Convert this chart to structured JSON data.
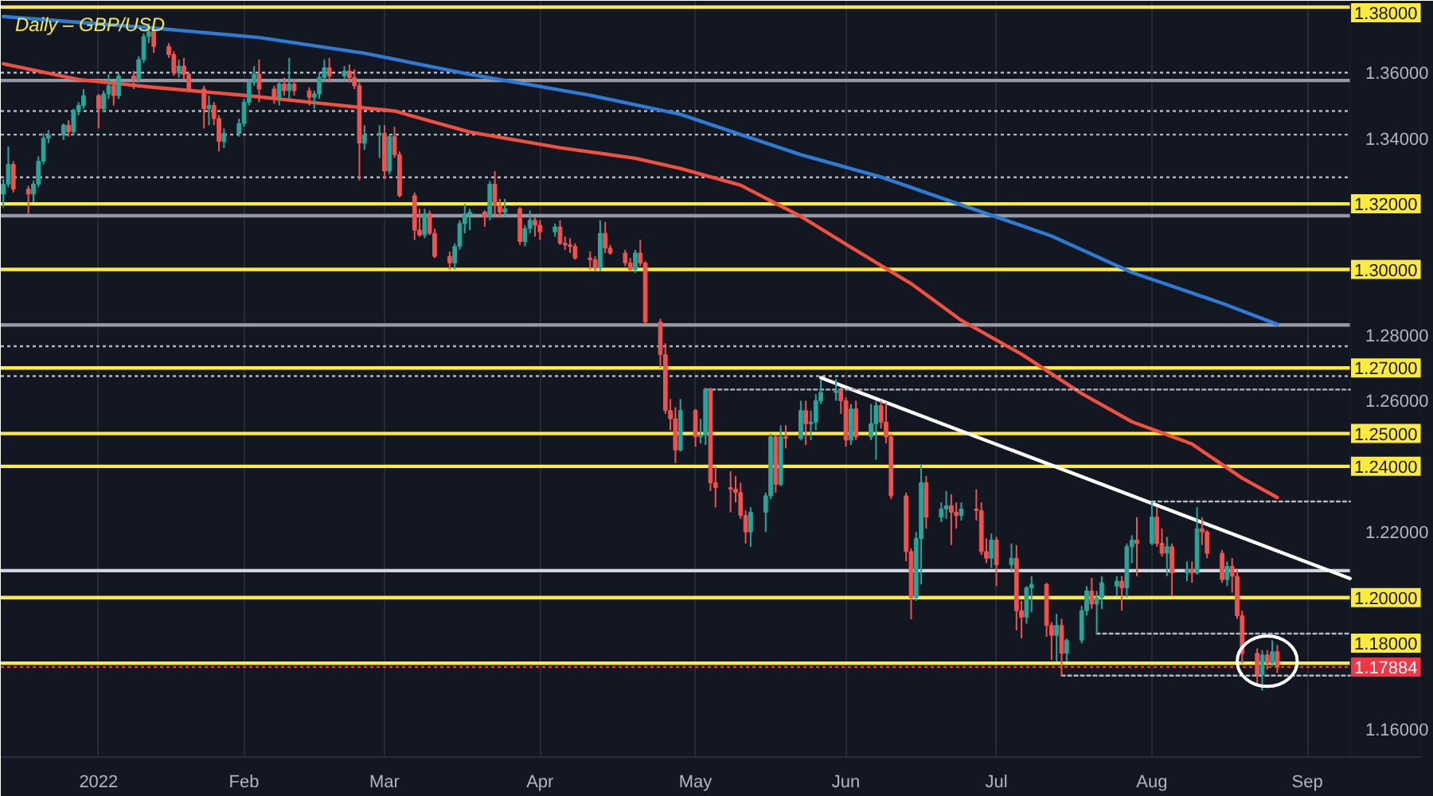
{
  "chart_data": {
    "type": "candlestick",
    "title": "Daily – GBP/USD",
    "xlim": [
      "2021-12-14T12:00",
      "2022-09-23T16:00"
    ],
    "ylim": [
      1.1514,
      1.3819
    ],
    "xticks": [
      {
        "value": "2022-01-03",
        "label": "2022"
      },
      {
        "value": "2022-02-01",
        "label": "Feb"
      },
      {
        "value": "2022-03-01",
        "label": "Mar"
      },
      {
        "value": "2022-04-01",
        "label": "Apr"
      },
      {
        "value": "2022-05-02",
        "label": "May"
      },
      {
        "value": "2022-06-01",
        "label": "Jun"
      },
      {
        "value": "2022-07-01",
        "label": "Jul"
      },
      {
        "value": "2022-08-01",
        "label": "Aug"
      },
      {
        "value": "2022-09-01",
        "label": "Sep"
      }
    ],
    "yticks": [
      {
        "value": 1.36,
        "label": "1.36000"
      },
      {
        "value": 1.34,
        "label": "1.34000"
      },
      {
        "value": 1.28,
        "label": "1.28000"
      },
      {
        "value": 1.26,
        "label": "1.26000"
      },
      {
        "value": 1.22,
        "label": "1.22000"
      },
      {
        "value": 1.16,
        "label": "1.16000"
      }
    ],
    "grid": "x",
    "x": [
      "2021-12-15",
      "2021-12-16",
      "2021-12-17",
      "2021-12-20",
      "2021-12-21",
      "2021-12-22",
      "2021-12-23",
      "2021-12-24",
      "2021-12-27",
      "2021-12-28",
      "2021-12-29",
      "2021-12-30",
      "2021-12-31",
      "2022-01-03",
      "2022-01-04",
      "2022-01-05",
      "2022-01-06",
      "2022-01-07",
      "2022-01-10",
      "2022-01-11",
      "2022-01-12",
      "2022-01-13",
      "2022-01-14",
      "2022-01-17",
      "2022-01-18",
      "2022-01-19",
      "2022-01-20",
      "2022-01-21",
      "2022-01-24",
      "2022-01-25",
      "2022-01-26",
      "2022-01-27",
      "2022-01-28",
      "2022-01-31",
      "2022-02-01",
      "2022-02-02",
      "2022-02-03",
      "2022-02-04",
      "2022-02-07",
      "2022-02-08",
      "2022-02-09",
      "2022-02-10",
      "2022-02-11",
      "2022-02-14",
      "2022-02-15",
      "2022-02-16",
      "2022-02-17",
      "2022-02-18",
      "2022-02-21",
      "2022-02-22",
      "2022-02-23",
      "2022-02-24",
      "2022-02-25",
      "2022-02-28",
      "2022-03-01",
      "2022-03-02",
      "2022-03-03",
      "2022-03-04",
      "2022-03-07",
      "2022-03-08",
      "2022-03-09",
      "2022-03-10",
      "2022-03-11",
      "2022-03-14",
      "2022-03-15",
      "2022-03-16",
      "2022-03-17",
      "2022-03-18",
      "2022-03-21",
      "2022-03-22",
      "2022-03-23",
      "2022-03-24",
      "2022-03-25",
      "2022-03-28",
      "2022-03-29",
      "2022-03-30",
      "2022-03-31",
      "2022-04-01",
      "2022-04-04",
      "2022-04-05",
      "2022-04-06",
      "2022-04-07",
      "2022-04-08",
      "2022-04-11",
      "2022-04-12",
      "2022-04-13",
      "2022-04-14",
      "2022-04-15",
      "2022-04-18",
      "2022-04-19",
      "2022-04-20",
      "2022-04-21",
      "2022-04-22",
      "2022-04-25",
      "2022-04-26",
      "2022-04-27",
      "2022-04-28",
      "2022-04-29",
      "2022-05-02",
      "2022-05-03",
      "2022-05-04",
      "2022-05-05",
      "2022-05-06",
      "2022-05-09",
      "2022-05-10",
      "2022-05-11",
      "2022-05-12",
      "2022-05-13",
      "2022-05-16",
      "2022-05-17",
      "2022-05-18",
      "2022-05-19",
      "2022-05-20",
      "2022-05-23",
      "2022-05-24",
      "2022-05-25",
      "2022-05-26",
      "2022-05-27",
      "2022-05-30",
      "2022-05-31",
      "2022-06-01",
      "2022-06-02",
      "2022-06-03",
      "2022-06-06",
      "2022-06-07",
      "2022-06-08",
      "2022-06-09",
      "2022-06-10",
      "2022-06-13",
      "2022-06-14",
      "2022-06-15",
      "2022-06-16",
      "2022-06-17",
      "2022-06-20",
      "2022-06-21",
      "2022-06-22",
      "2022-06-23",
      "2022-06-24",
      "2022-06-27",
      "2022-06-28",
      "2022-06-29",
      "2022-06-30",
      "2022-07-01",
      "2022-07-04",
      "2022-07-05",
      "2022-07-06",
      "2022-07-07",
      "2022-07-08",
      "2022-07-11",
      "2022-07-12",
      "2022-07-13",
      "2022-07-14",
      "2022-07-15",
      "2022-07-18",
      "2022-07-19",
      "2022-07-20",
      "2022-07-21",
      "2022-07-22",
      "2022-07-25",
      "2022-07-26",
      "2022-07-27",
      "2022-07-28",
      "2022-07-29",
      "2022-08-01",
      "2022-08-02",
      "2022-08-03",
      "2022-08-04",
      "2022-08-05",
      "2022-08-08",
      "2022-08-09",
      "2022-08-10",
      "2022-08-11",
      "2022-08-12",
      "2022-08-15",
      "2022-08-16",
      "2022-08-17",
      "2022-08-18",
      "2022-08-19",
      "2022-08-22",
      "2022-08-23",
      "2022-08-24",
      "2022-08-25",
      "2022-08-26"
    ],
    "ohlc": [
      [
        1.323,
        1.3275,
        1.319,
        1.326
      ],
      [
        1.326,
        1.3375,
        1.325,
        1.332
      ],
      [
        1.332,
        1.333,
        1.3235,
        1.3245
      ],
      [
        1.3245,
        1.3255,
        1.317,
        1.323
      ],
      [
        1.323,
        1.327,
        1.3205,
        1.326
      ],
      [
        1.326,
        1.3345,
        1.325,
        1.333
      ],
      [
        1.333,
        1.3415,
        1.332,
        1.34
      ],
      [
        1.34,
        1.3425,
        1.3385,
        1.341
      ],
      [
        1.341,
        1.3445,
        1.3395,
        1.344
      ],
      [
        1.344,
        1.3455,
        1.3405,
        1.342
      ],
      [
        1.342,
        1.349,
        1.341,
        1.3485
      ],
      [
        1.3485,
        1.351,
        1.347,
        1.35
      ],
      [
        1.35,
        1.355,
        1.349,
        1.353
      ],
      [
        1.353,
        1.3535,
        1.343,
        1.349
      ],
      [
        1.349,
        1.3545,
        1.348,
        1.3535
      ],
      [
        1.3535,
        1.3595,
        1.352,
        1.356
      ],
      [
        1.356,
        1.3565,
        1.35,
        1.353
      ],
      [
        1.353,
        1.36,
        1.352,
        1.359
      ],
      [
        1.359,
        1.3605,
        1.355,
        1.358
      ],
      [
        1.358,
        1.365,
        1.357,
        1.364
      ],
      [
        1.364,
        1.372,
        1.363,
        1.371
      ],
      [
        1.371,
        1.375,
        1.369,
        1.3725
      ],
      [
        1.3725,
        1.373,
        1.366,
        1.368
      ],
      [
        1.368,
        1.369,
        1.3645,
        1.3655
      ],
      [
        1.3655,
        1.3665,
        1.359,
        1.36
      ],
      [
        1.36,
        1.364,
        1.3585,
        1.362
      ],
      [
        1.362,
        1.3645,
        1.358,
        1.3595
      ],
      [
        1.3595,
        1.36,
        1.354,
        1.355
      ],
      [
        1.355,
        1.356,
        1.343,
        1.349
      ],
      [
        1.349,
        1.353,
        1.344,
        1.35
      ],
      [
        1.35,
        1.351,
        1.344,
        1.346
      ],
      [
        1.346,
        1.347,
        1.336,
        1.339
      ],
      [
        1.339,
        1.343,
        1.337,
        1.3415
      ],
      [
        1.3415,
        1.346,
        1.3405,
        1.3445
      ],
      [
        1.3445,
        1.352,
        1.3435,
        1.351
      ],
      [
        1.351,
        1.358,
        1.35,
        1.357
      ],
      [
        1.357,
        1.362,
        1.356,
        1.3595
      ],
      [
        1.3595,
        1.364,
        1.351,
        1.355
      ],
      [
        1.355,
        1.356,
        1.3505,
        1.3525
      ],
      [
        1.3525,
        1.358,
        1.35,
        1.3565
      ],
      [
        1.3565,
        1.3585,
        1.353,
        1.3545
      ],
      [
        1.3545,
        1.3645,
        1.352,
        1.3565
      ],
      [
        1.3565,
        1.358,
        1.353,
        1.3545
      ],
      [
        1.3545,
        1.3555,
        1.35,
        1.3525
      ],
      [
        1.3525,
        1.3545,
        1.349,
        1.3535
      ],
      [
        1.3535,
        1.36,
        1.352,
        1.3585
      ],
      [
        1.3585,
        1.364,
        1.3575,
        1.3615
      ],
      [
        1.3615,
        1.3645,
        1.357,
        1.359
      ],
      [
        1.359,
        1.362,
        1.3575,
        1.3605
      ],
      [
        1.3605,
        1.3625,
        1.357,
        1.3585
      ],
      [
        1.3585,
        1.361,
        1.355,
        1.356
      ],
      [
        1.356,
        1.357,
        1.3272,
        1.3385
      ],
      [
        1.3385,
        1.344,
        1.3365,
        1.341
      ],
      [
        1.341,
        1.344,
        1.334,
        1.3415
      ],
      [
        1.3415,
        1.344,
        1.3275,
        1.33
      ],
      [
        1.33,
        1.341,
        1.329,
        1.3405
      ],
      [
        1.3405,
        1.3435,
        1.334,
        1.335
      ],
      [
        1.335,
        1.336,
        1.322,
        1.3225
      ],
      [
        1.3225,
        1.3235,
        1.309,
        1.312
      ],
      [
        1.312,
        1.3185,
        1.31,
        1.3105
      ],
      [
        1.3105,
        1.3185,
        1.3095,
        1.317
      ],
      [
        1.317,
        1.318,
        1.3105,
        1.311
      ],
      [
        1.311,
        1.3125,
        1.3035,
        1.304
      ],
      [
        1.304,
        1.3055,
        1.3,
        1.302
      ],
      [
        1.302,
        1.308,
        1.3,
        1.307
      ],
      [
        1.307,
        1.315,
        1.306,
        1.314
      ],
      [
        1.314,
        1.32,
        1.311,
        1.317
      ],
      [
        1.317,
        1.3185,
        1.312,
        1.3175
      ],
      [
        1.3175,
        1.318,
        1.313,
        1.316
      ],
      [
        1.316,
        1.327,
        1.315,
        1.326
      ],
      [
        1.326,
        1.33,
        1.316,
        1.3195
      ],
      [
        1.3195,
        1.3215,
        1.316,
        1.3175
      ],
      [
        1.3175,
        1.3215,
        1.316,
        1.3185
      ],
      [
        1.3185,
        1.319,
        1.3075,
        1.3085
      ],
      [
        1.3085,
        1.3135,
        1.307,
        1.3125
      ],
      [
        1.3125,
        1.318,
        1.311,
        1.315
      ],
      [
        1.315,
        1.316,
        1.31,
        1.3135
      ],
      [
        1.3135,
        1.315,
        1.309,
        1.3115
      ],
      [
        1.3115,
        1.314,
        1.31,
        1.313
      ],
      [
        1.313,
        1.315,
        1.3075,
        1.308
      ],
      [
        1.308,
        1.31,
        1.306,
        1.3075
      ],
      [
        1.3075,
        1.3095,
        1.305,
        1.307
      ],
      [
        1.307,
        1.308,
        1.303,
        1.3035
      ],
      [
        1.3035,
        1.3055,
        1.3,
        1.303
      ],
      [
        1.303,
        1.304,
        1.2995,
        1.3005
      ],
      [
        1.3005,
        1.315,
        1.2995,
        1.311
      ],
      [
        1.311,
        1.3145,
        1.305,
        1.3065
      ],
      [
        1.3065,
        1.3075,
        1.3045,
        1.305
      ],
      [
        1.305,
        1.306,
        1.301,
        1.302
      ],
      [
        1.302,
        1.3035,
        1.2995,
        1.3
      ],
      [
        1.3,
        1.306,
        1.299,
        1.305
      ],
      [
        1.305,
        1.309,
        1.301,
        1.302
      ],
      [
        1.302,
        1.3025,
        1.2835,
        1.284
      ],
      [
        1.284,
        1.285,
        1.27,
        1.274
      ],
      [
        1.274,
        1.2775,
        1.256,
        1.257
      ],
      [
        1.257,
        1.2605,
        1.251,
        1.2545
      ],
      [
        1.2545,
        1.258,
        1.241,
        1.245
      ],
      [
        1.245,
        1.2605,
        1.2445,
        1.257
      ],
      [
        1.257,
        1.2575,
        1.246,
        1.249
      ],
      [
        1.249,
        1.2545,
        1.247,
        1.2495
      ],
      [
        1.2495,
        1.264,
        1.2465,
        1.2635
      ],
      [
        1.2635,
        1.264,
        1.2325,
        1.235
      ],
      [
        1.235,
        1.24,
        1.2275,
        1.2335
      ],
      [
        1.2335,
        1.2385,
        1.226,
        1.233
      ],
      [
        1.233,
        1.237,
        1.229,
        1.232
      ],
      [
        1.232,
        1.235,
        1.224,
        1.225
      ],
      [
        1.225,
        1.2265,
        1.2165,
        1.22
      ],
      [
        1.22,
        1.2275,
        1.2155,
        1.226
      ],
      [
        1.226,
        1.232,
        1.22,
        1.231
      ],
      [
        1.231,
        1.25,
        1.23,
        1.249
      ],
      [
        1.249,
        1.2495,
        1.232,
        1.2345
      ],
      [
        1.2345,
        1.2525,
        1.234,
        1.249
      ],
      [
        1.249,
        1.2525,
        1.2455,
        1.2485
      ],
      [
        1.2485,
        1.26,
        1.248,
        1.257
      ],
      [
        1.257,
        1.26,
        1.2465,
        1.253
      ],
      [
        1.253,
        1.257,
        1.248,
        1.2535
      ],
      [
        1.2535,
        1.262,
        1.251,
        1.26
      ],
      [
        1.26,
        1.2665,
        1.259,
        1.2625
      ],
      [
        1.2625,
        1.2666,
        1.26,
        1.263
      ],
      [
        1.263,
        1.264,
        1.256,
        1.26
      ],
      [
        1.26,
        1.261,
        1.246,
        1.248
      ],
      [
        1.248,
        1.259,
        1.2465,
        1.2575
      ],
      [
        1.2575,
        1.26,
        1.248,
        1.249
      ],
      [
        1.249,
        1.259,
        1.248,
        1.253
      ],
      [
        1.253,
        1.26,
        1.242,
        1.2585
      ],
      [
        1.2585,
        1.26,
        1.2515,
        1.2535
      ],
      [
        1.2535,
        1.2595,
        1.247,
        1.249
      ],
      [
        1.249,
        1.25,
        1.23,
        1.231
      ],
      [
        1.231,
        1.232,
        1.211,
        1.214
      ],
      [
        1.214,
        1.215,
        1.1934,
        1.2
      ],
      [
        1.2,
        1.22,
        1.199,
        1.218
      ],
      [
        1.218,
        1.2406,
        1.204,
        1.235
      ],
      [
        1.235,
        1.237,
        1.221,
        1.2245
      ],
      [
        1.2245,
        1.229,
        1.223,
        1.227
      ],
      [
        1.227,
        1.2325,
        1.224,
        1.228
      ],
      [
        1.228,
        1.2315,
        1.216,
        1.226
      ],
      [
        1.226,
        1.229,
        1.221,
        1.225
      ],
      [
        1.225,
        1.229,
        1.2235,
        1.227
      ],
      [
        1.227,
        1.233,
        1.2235,
        1.2265
      ],
      [
        1.2265,
        1.229,
        1.213,
        1.214
      ],
      [
        1.214,
        1.218,
        1.2105,
        1.212
      ],
      [
        1.212,
        1.2195,
        1.209,
        1.2175
      ],
      [
        1.2175,
        1.2185,
        1.2035,
        1.21
      ],
      [
        1.21,
        1.2165,
        1.208,
        1.212
      ],
      [
        1.212,
        1.216,
        1.19,
        1.196
      ],
      [
        1.196,
        1.199,
        1.1876,
        1.194
      ],
      [
        1.194,
        1.2035,
        1.192,
        1.203
      ],
      [
        1.203,
        1.2065,
        1.1955,
        1.204
      ],
      [
        1.204,
        1.2045,
        1.188,
        1.1915
      ],
      [
        1.1915,
        1.1925,
        1.181,
        1.1885
      ],
      [
        1.1885,
        1.195,
        1.1805,
        1.1915
      ],
      [
        1.1915,
        1.1935,
        1.176,
        1.183
      ],
      [
        1.183,
        1.1875,
        1.1805,
        1.187
      ],
      [
        1.187,
        1.1975,
        1.186,
        1.196
      ],
      [
        1.196,
        1.2035,
        1.1945,
        1.202
      ],
      [
        1.202,
        1.206,
        1.1965,
        1.198
      ],
      [
        1.198,
        1.202,
        1.189,
        1.2
      ],
      [
        1.2,
        1.2065,
        1.1965,
        1.2045
      ],
      [
        1.2035,
        1.2065,
        1.2005,
        1.205
      ],
      [
        1.205,
        1.2065,
        1.196,
        1.203
      ],
      [
        1.203,
        1.2165,
        1.2,
        1.2155
      ],
      [
        1.2155,
        1.219,
        1.2105,
        1.2175
      ],
      [
        1.2175,
        1.2245,
        1.2065,
        1.2165
      ],
      [
        1.2165,
        1.2293,
        1.216,
        1.2245
      ],
      [
        1.2245,
        1.2275,
        1.2155,
        1.2165
      ],
      [
        1.2165,
        1.221,
        1.2125,
        1.2135
      ],
      [
        1.2135,
        1.2185,
        1.2065,
        1.2155
      ],
      [
        1.2155,
        1.2165,
        1.2005,
        1.2075
      ],
      [
        1.2075,
        1.211,
        1.205,
        1.2085
      ],
      [
        1.2085,
        1.211,
        1.2045,
        1.2075
      ],
      [
        1.2075,
        1.2276,
        1.207,
        1.221
      ],
      [
        1.221,
        1.2245,
        1.216,
        1.22
      ],
      [
        1.22,
        1.2205,
        1.212,
        1.2135
      ],
      [
        1.2135,
        1.2145,
        1.2045,
        1.2055
      ],
      [
        1.2055,
        1.211,
        1.2035,
        1.2095
      ],
      [
        1.2095,
        1.212,
        1.2015,
        1.2065
      ],
      [
        1.2065,
        1.2085,
        1.1935,
        1.1945
      ],
      [
        1.1945,
        1.196,
        1.18,
        1.183
      ],
      [
        1.183,
        1.1845,
        1.1735,
        1.1765
      ],
      [
        1.1765,
        1.184,
        1.1717,
        1.1825
      ],
      [
        1.1825,
        1.184,
        1.178,
        1.18
      ],
      [
        1.18,
        1.187,
        1.179,
        1.1835
      ],
      [
        1.1835,
        1.1855,
        1.177,
        1.1788
      ]
    ],
    "colors": [
      "#26a69a",
      "#26a69a",
      "#ef5350",
      "#ef5350",
      "#26a69a",
      "#26a69a",
      "#26a69a",
      "#26a69a",
      "#26a69a",
      "#ef5350",
      "#26a69a",
      "#26a69a",
      "#26a69a",
      "#ef5350",
      "#26a69a",
      "#26a69a",
      "#ef5350",
      "#26a69a",
      "#ef5350",
      "#26a69a",
      "#26a69a",
      "#26a69a",
      "#ef5350",
      "#ef5350",
      "#ef5350",
      "#26a69a",
      "#ef5350",
      "#ef5350",
      "#ef5350",
      "#26a69a",
      "#ef5350",
      "#ef5350",
      "#26a69a",
      "#26a69a",
      "#26a69a",
      "#26a69a",
      "#26a69a",
      "#ef5350",
      "#ef5350",
      "#26a69a",
      "#ef5350",
      "#26a69a",
      "#ef5350",
      "#ef5350",
      "#26a69a",
      "#26a69a",
      "#26a69a",
      "#ef5350",
      "#26a69a",
      "#ef5350",
      "#ef5350",
      "#ef5350",
      "#26a69a",
      "#26a69a",
      "#ef5350",
      "#26a69a",
      "#ef5350",
      "#ef5350",
      "#ef5350",
      "#ef5350",
      "#26a69a",
      "#ef5350",
      "#ef5350",
      "#ef5350",
      "#26a69a",
      "#26a69a",
      "#26a69a",
      "#26a69a",
      "#ef5350",
      "#26a69a",
      "#ef5350",
      "#ef5350",
      "#26a69a",
      "#ef5350",
      "#26a69a",
      "#26a69a",
      "#ef5350",
      "#ef5350",
      "#26a69a",
      "#ef5350",
      "#ef5350",
      "#ef5350",
      "#ef5350",
      "#ef5350",
      "#ef5350",
      "#26a69a",
      "#ef5350",
      "#ef5350",
      "#ef5350",
      "#ef5350",
      "#26a69a",
      "#ef5350",
      "#ef5350",
      "#ef5350",
      "#ef5350",
      "#ef5350",
      "#ef5350",
      "#26a69a",
      "#ef5350",
      "#26a69a",
      "#26a69a",
      "#ef5350",
      "#ef5350",
      "#ef5350",
      "#ef5350",
      "#ef5350",
      "#ef5350",
      "#26a69a",
      "#26a69a",
      "#26a69a",
      "#ef5350",
      "#26a69a",
      "#ef5350",
      "#26a69a",
      "#ef5350",
      "#26a69a",
      "#26a69a",
      "#26a69a",
      "#26a69a",
      "#ef5350",
      "#ef5350",
      "#26a69a",
      "#ef5350",
      "#26a69a",
      "#26a69a",
      "#ef5350",
      "#ef5350",
      "#ef5350",
      "#ef5350",
      "#ef5350",
      "#26a69a",
      "#26a69a",
      "#ef5350",
      "#26a69a",
      "#26a69a",
      "#ef5350",
      "#ef5350",
      "#26a69a",
      "#ef5350",
      "#ef5350",
      "#ef5350",
      "#26a69a",
      "#ef5350",
      "#26a69a",
      "#ef5350",
      "#ef5350",
      "#26a69a",
      "#26a69a",
      "#ef5350",
      "#ef5350",
      "#26a69a",
      "#ef5350",
      "#26a69a",
      "#26a69a",
      "#26a69a",
      "#ef5350",
      "#26a69a",
      "#26a69a",
      "#26a69a",
      "#ef5350",
      "#26a69a",
      "#26a69a",
      "#ef5350",
      "#26a69a",
      "#ef5350",
      "#ef5350",
      "#26a69a",
      "#ef5350",
      "#26a69a",
      "#ef5350",
      "#26a69a",
      "#ef5350",
      "#ef5350",
      "#ef5350",
      "#26a69a",
      "#ef5350",
      "#ef5350",
      "#ef5350",
      "#ef5350",
      "#26a69a",
      "#ef5350",
      "#26a69a",
      "#ef5350"
    ],
    "series": [
      {
        "type": "line",
        "color": "#f0503f",
        "x": [
          "2021-12-15",
          "2021-12-30",
          "2022-01-14",
          "2022-02-01",
          "2022-02-16",
          "2022-03-03",
          "2022-03-18",
          "2022-04-05",
          "2022-04-20",
          "2022-04-29",
          "2022-05-11",
          "2022-05-23",
          "2022-06-02",
          "2022-06-14",
          "2022-06-24",
          "2022-07-06",
          "2022-07-18",
          "2022-07-28",
          "2022-08-09",
          "2022-08-19",
          "2022-08-26"
        ],
        "values": [
          1.3627,
          1.3579,
          1.3555,
          1.3531,
          1.3507,
          1.3483,
          1.3419,
          1.3371,
          1.3339,
          1.3308,
          1.3257,
          1.3162,
          1.3068,
          1.2957,
          1.2845,
          1.2742,
          1.2622,
          1.2536,
          1.2468,
          1.2364,
          1.2305
        ]
      },
      {
        "type": "line",
        "color": "#2e7bd6",
        "x": [
          "2021-12-15",
          "2022-01-14",
          "2022-02-04",
          "2022-02-25",
          "2022-03-18",
          "2022-04-11",
          "2022-04-29",
          "2022-05-23",
          "2022-06-08",
          "2022-06-24",
          "2022-07-12",
          "2022-07-28",
          "2022-08-15",
          "2022-08-26"
        ],
        "values": [
          1.3771,
          1.3736,
          1.3707,
          1.3659,
          1.3595,
          1.3531,
          1.3473,
          1.335,
          1.3282,
          1.3197,
          1.3102,
          1.2991,
          1.2897,
          1.2833
        ]
      },
      {
        "type": "line",
        "color": "#ffffff",
        "x": [
          "2022-05-27",
          "2022-09-09T12:00"
        ],
        "values": [
          1.267,
          1.2058
        ]
      },
      {
        "type": "line",
        "color": "#b2b5be",
        "line_style": "dotted",
        "x": [
          "2022-05-04",
          "2022-09-09T12:00"
        ],
        "values": [
          1.2634,
          1.2634
        ]
      },
      {
        "type": "line",
        "color": "#b2b5be",
        "line_style": "dotted",
        "x": [
          "2022-08-01",
          "2022-09-09T12:00"
        ],
        "values": [
          1.2293,
          1.2293
        ]
      },
      {
        "type": "line",
        "color": "#b2b5be",
        "line_style": "dotted",
        "x": [
          "2022-07-21",
          "2022-09-09T12:00"
        ],
        "values": [
          1.189,
          1.189
        ]
      },
      {
        "type": "line",
        "color": "#b2b5be",
        "line_style": "dotted",
        "x": [
          "2022-07-14",
          "2022-09-09T12:00"
        ],
        "values": [
          1.1762,
          1.1762
        ]
      },
      {
        "type": "scatter",
        "marker": "circle",
        "color": "#ffffff",
        "x": [
          "2022-08-24"
        ],
        "values": [
          1.1806
        ]
      }
    ],
    "ref_lines": [
      {
        "axis": "y",
        "value": 1.17884,
        "label": "1.17884",
        "color": "#f23645",
        "line_style": "dotted"
      },
      {
        "axis": "y",
        "value": 1.38,
        "label": "1.38000",
        "color": "#ffeb3b"
      },
      {
        "axis": "y",
        "value": 1.32,
        "label": "1.32000",
        "color": "#ffeb3b"
      },
      {
        "axis": "y",
        "value": 1.3,
        "label": "1.30000",
        "color": "#ffeb3b"
      },
      {
        "axis": "y",
        "value": 1.27,
        "label": "1.27000",
        "color": "#ffeb3b"
      },
      {
        "axis": "y",
        "value": 1.25,
        "label": "1.25000",
        "color": "#ffeb3b"
      },
      {
        "axis": "y",
        "value": 1.24,
        "label": "1.24000",
        "color": "#ffeb3b"
      },
      {
        "axis": "y",
        "value": 1.2,
        "label": "1.20000",
        "color": "#ffeb3b"
      },
      {
        "axis": "y",
        "value": 1.18,
        "label": "1.18000",
        "color": "#ffeb3b"
      },
      {
        "axis": "y",
        "value": 1.3576,
        "color": "#9598a1"
      },
      {
        "axis": "y",
        "value": 1.3164,
        "color": "#9598a1"
      },
      {
        "axis": "y",
        "value": 1.2831,
        "color": "#9598a1"
      },
      {
        "axis": "y",
        "value": 1.2082,
        "color": "#d1d4dc"
      },
      {
        "axis": "y",
        "value": 1.36,
        "color": "#b2b5be",
        "line_style": "dotted"
      },
      {
        "axis": "y",
        "value": 1.3483,
        "color": "#b2b5be",
        "line_style": "dotted"
      },
      {
        "axis": "y",
        "value": 1.3411,
        "color": "#b2b5be",
        "line_style": "dotted"
      },
      {
        "axis": "y",
        "value": 1.3281,
        "color": "#b2b5be",
        "line_style": "dotted"
      },
      {
        "axis": "y",
        "value": 1.2766,
        "color": "#b2b5be",
        "line_style": "dotted"
      },
      {
        "axis": "y",
        "value": 1.2675,
        "color": "#b2b5be",
        "line_style": "dotted"
      }
    ]
  }
}
